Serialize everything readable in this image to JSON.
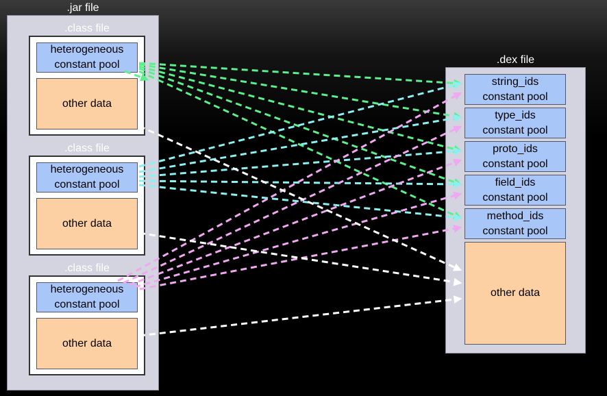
{
  "jar": {
    "title": ".jar file",
    "classes": [
      {
        "title": ".class file",
        "pool": "heterogeneous\nconstant pool",
        "other": "other data"
      },
      {
        "title": ".class file",
        "pool": "heterogeneous\nconstant pool",
        "other": "other data"
      },
      {
        "title": ".class file",
        "pool": "heterogeneous\nconstant pool",
        "other": "other data"
      }
    ]
  },
  "dex": {
    "title": ".dex file",
    "pools": [
      "string_ids\nconstant pool",
      "type_ids\nconstant pool",
      "proto_ids\nconstant pool",
      "field_ids\nconstant pool",
      "method_ids\nconstant pool"
    ],
    "other": "other data"
  },
  "colors": {
    "class1_arrows": "#5cf08c",
    "class2_arrows": "#8cf0f0",
    "class3_arrows": "#f0a8f0",
    "other_data_arrows": "#ffffff"
  }
}
